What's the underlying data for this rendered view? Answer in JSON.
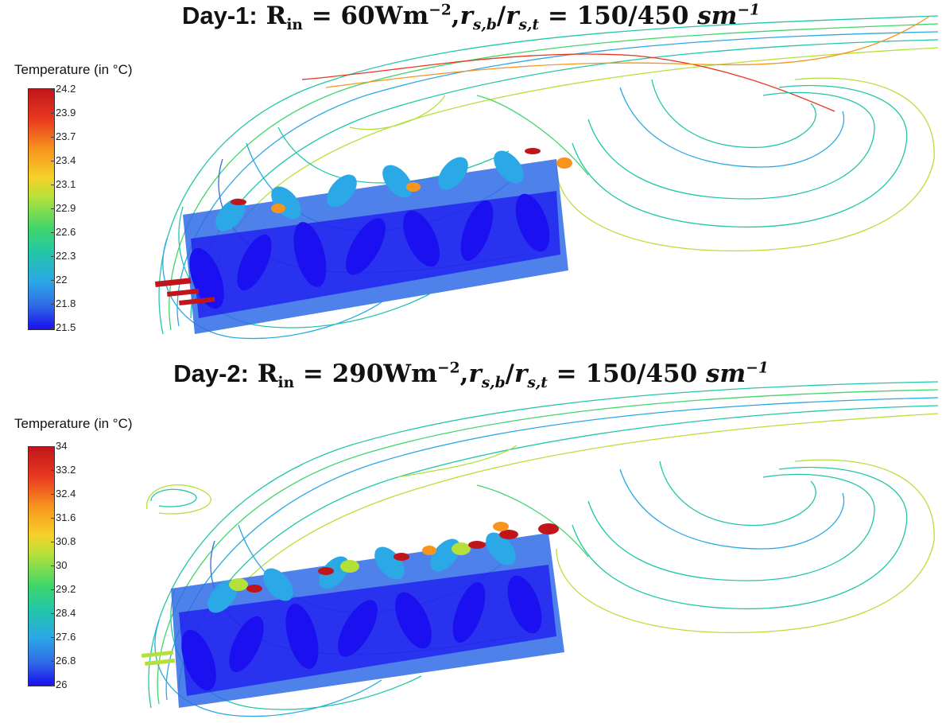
{
  "panels": [
    {
      "title": {
        "lead": "Day-1:",
        "r_label": "R",
        "r_sub": "in",
        "equals": "=",
        "r_value": "60Wm",
        "r_exp": "−2",
        "comma": ",",
        "rs1": "r",
        "rs1_sub": "s,b",
        "slash": "/",
        "rs2": "r",
        "rs2_sub": "s,t",
        "equals2": "=",
        "ratio": "150/450",
        "unit": "sm",
        "unit_exp": "−1"
      },
      "colorbar": {
        "label": "Temperature (in °C)",
        "ticks": [
          "24.2",
          "23.9",
          "23.7",
          "23.4",
          "23.1",
          "22.9",
          "22.6",
          "22.3",
          "22",
          "21.8",
          "21.5"
        ]
      }
    },
    {
      "title": {
        "lead": "Day-2:",
        "r_label": "R",
        "r_sub": "in",
        "equals": "=",
        "r_value": "290Wm",
        "r_exp": "−2",
        "comma": ",",
        "rs1": "r",
        "rs1_sub": "s,b",
        "slash": "/",
        "rs2": "r",
        "rs2_sub": "s,t",
        "equals2": "=",
        "ratio": "150/450",
        "unit": "sm",
        "unit_exp": "−1"
      },
      "colorbar": {
        "label": "Temperature (in °C)",
        "ticks": [
          "34",
          "33.2",
          "32.4",
          "31.6",
          "30.8",
          "30",
          "29.2",
          "28.4",
          "27.6",
          "26.8",
          "26"
        ]
      }
    }
  ],
  "palette": {
    "hot": "#c0161b",
    "warm": "#f7941d",
    "mid": "#b5e03a",
    "cool": "#23c6a8",
    "cold": "#1a10f0"
  }
}
